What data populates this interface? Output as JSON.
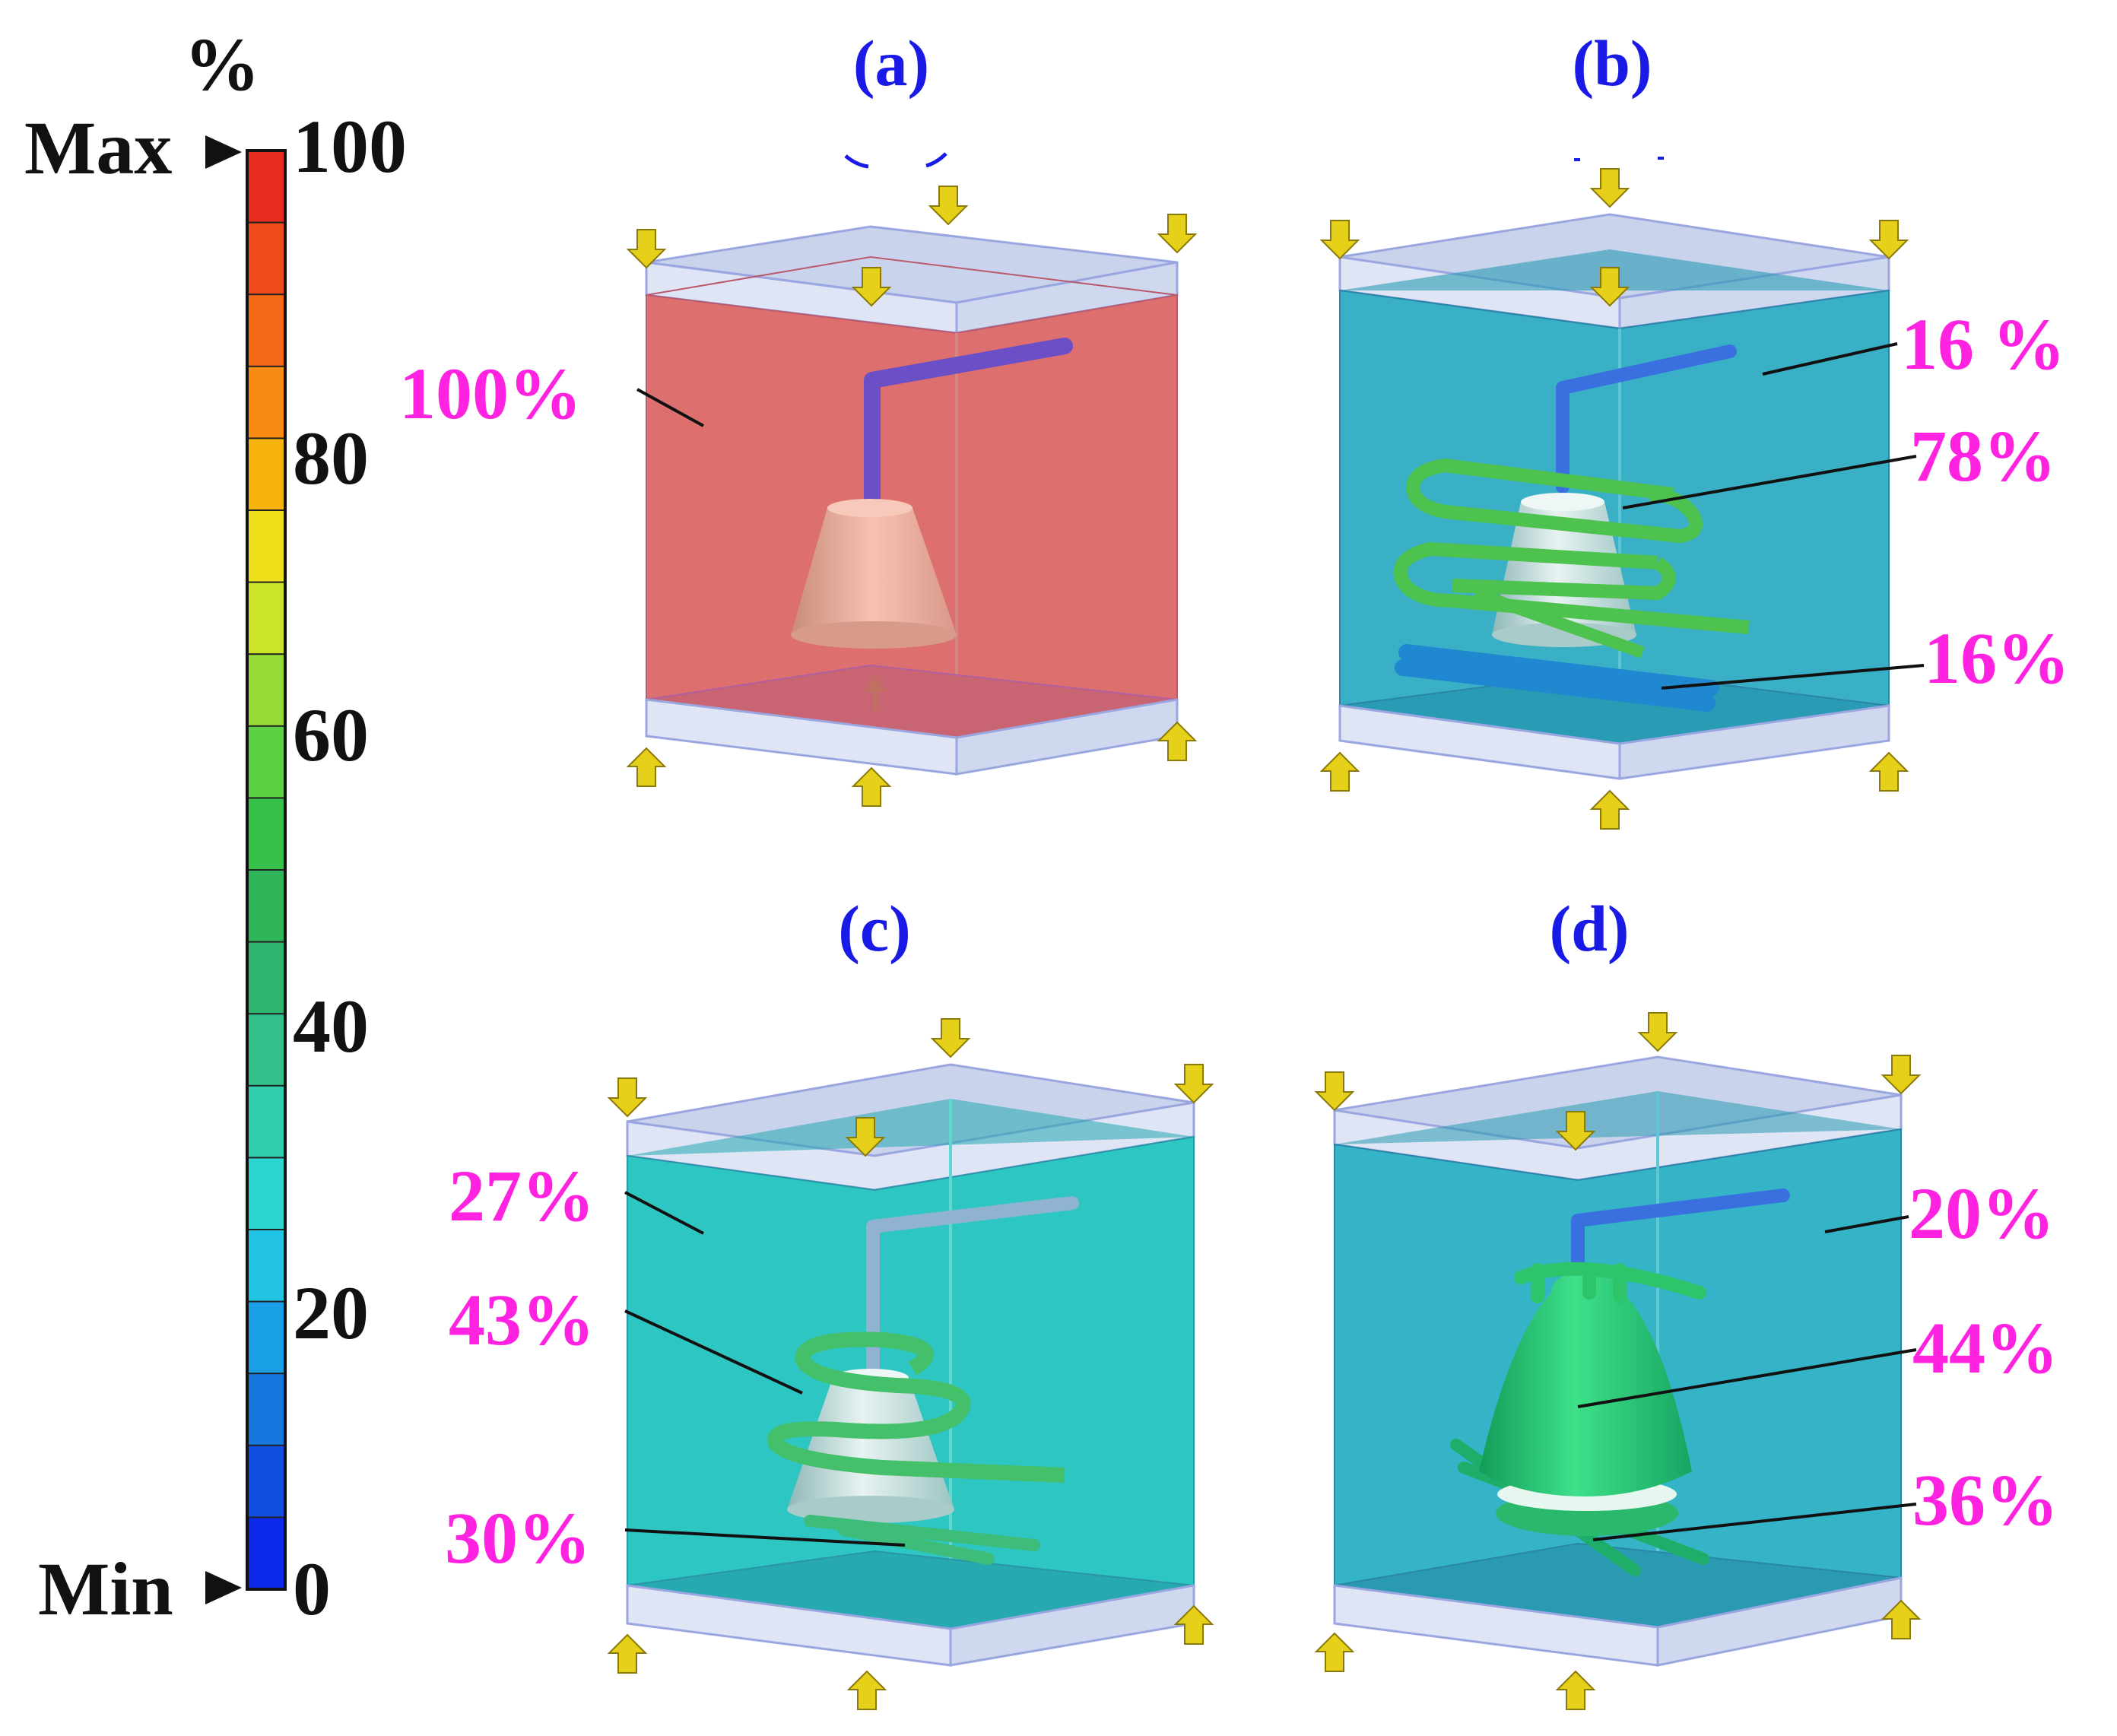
{
  "colorbar": {
    "unit": "%",
    "max_label": "Max",
    "min_label": "Min",
    "ticks": [
      "100",
      "80",
      "60",
      "40",
      "20",
      "0"
    ],
    "colors": [
      "#e82b20",
      "#ee4a1c",
      "#f46a17",
      "#f88c12",
      "#f6b30e",
      "#ede01a",
      "#cbe428",
      "#96dc34",
      "#5bd143",
      "#36c24a",
      "#30b65a",
      "#2fb46e",
      "#31bf8a",
      "#2fcfae",
      "#2ad6cf",
      "#21c5e3",
      "#1aa0e6",
      "#1677df",
      "#124ee0",
      "#0b27e8"
    ]
  },
  "panels": [
    {
      "id": "a",
      "label": "(a)",
      "fill": "#de6f6f",
      "annotations": [
        "100%"
      ]
    },
    {
      "id": "b",
      "label": "(b)",
      "fill": "#3ab0c6",
      "annotations": [
        "16 %",
        "78%",
        "16%"
      ]
    },
    {
      "id": "c",
      "label": "(c)",
      "fill": "#2ec6c2",
      "annotations": [
        "27%",
        "43%",
        "30%"
      ]
    },
    {
      "id": "d",
      "label": "(d)",
      "fill": "#35b4c8",
      "annotations": [
        "20%",
        "44%",
        "36%"
      ]
    }
  ]
}
